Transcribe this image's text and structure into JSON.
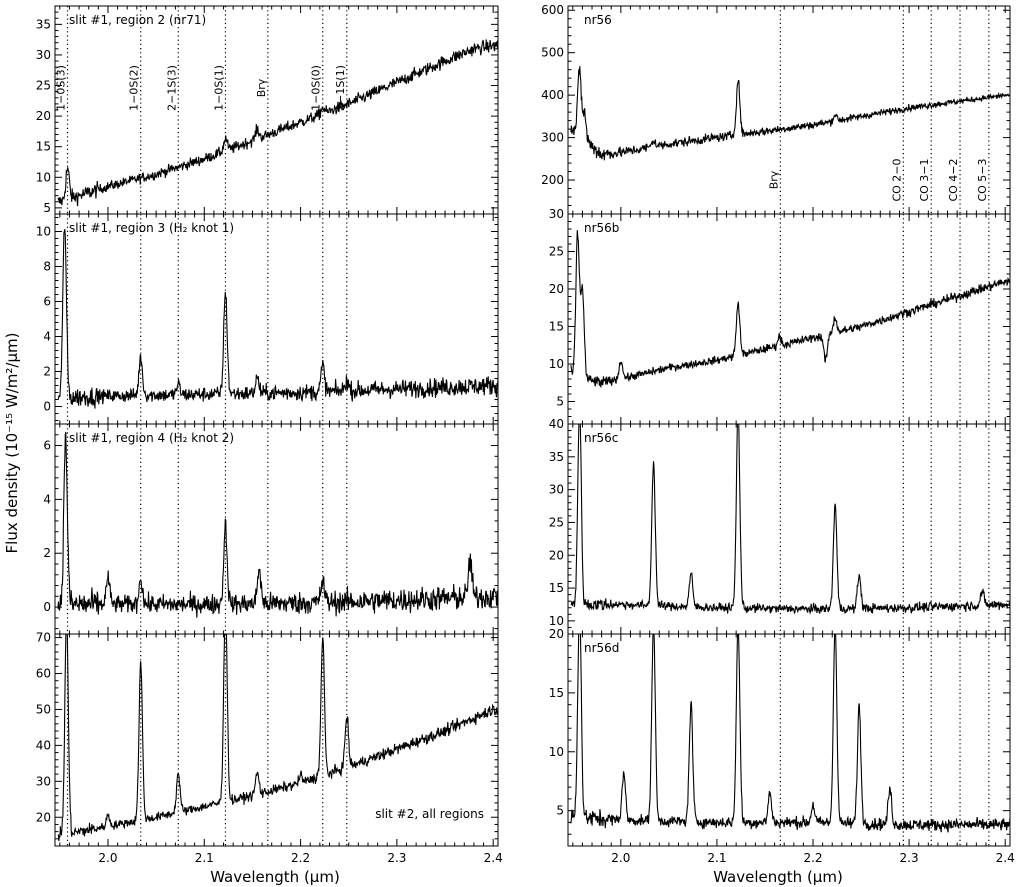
{
  "chart_data": {
    "type": "line",
    "xlabel": "Wavelength (μm)",
    "ylabel": "Flux density (10⁻¹⁵ W/m²/μm)",
    "xlim": [
      1.945,
      2.405
    ],
    "xticks": [
      2.0,
      2.1,
      2.2,
      2.3,
      2.4
    ],
    "xtick_labels": [
      "2.0",
      "2.1",
      "2.2",
      "2.3",
      "2.4"
    ],
    "left_lines": [
      {
        "label": "1−0S(3)",
        "x": 1.958
      },
      {
        "label": "1−0S(2)",
        "x": 2.034
      },
      {
        "label": "2−1S(3)",
        "x": 2.073
      },
      {
        "label": "1−0S(1)",
        "x": 2.122
      },
      {
        "label": "Brγ",
        "x": 2.166
      },
      {
        "label": "1−0S(0)",
        "x": 2.223
      },
      {
        "label": "2−1S(1)",
        "x": 2.248
      }
    ],
    "right_lines": [
      {
        "label": "Brγ",
        "x": 2.166
      },
      {
        "label": "CO 2−0",
        "x": 2.294
      },
      {
        "label": "CO 3−1",
        "x": 2.323
      },
      {
        "label": "CO 4−2",
        "x": 2.353
      },
      {
        "label": "CO 5−3",
        "x": 2.383
      }
    ],
    "panels": [
      {
        "col": "left",
        "row": 0,
        "label": "slit #1, region 2 (nr71)",
        "label_pos": "top-left",
        "ylim": [
          4,
          38
        ],
        "yticks": [
          5,
          10,
          15,
          20,
          25,
          30,
          35
        ],
        "ytick_labels": [
          "5",
          "10",
          "15",
          "20",
          "25",
          "30",
          "35"
        ],
        "show_line_labels": true,
        "continuum": {
          "x": [
            1.95,
            2.0,
            2.05,
            2.1,
            2.15,
            2.2,
            2.25,
            2.3,
            2.35,
            2.38,
            2.4
          ],
          "y": [
            6,
            8.5,
            10.5,
            13,
            16,
            19,
            22,
            25.5,
            29,
            31,
            31.5
          ]
        },
        "noise": 0.55,
        "noise_slope": 0.4,
        "peaks": [
          {
            "x": 1.958,
            "h": 5
          },
          {
            "x": 2.122,
            "h": 2
          },
          {
            "x": 2.155,
            "h": 1.5
          },
          {
            "x": 2.223,
            "h": 1
          }
        ]
      },
      {
        "col": "left",
        "row": 1,
        "label": "slit #1, region 3 (H₂ knot 1)",
        "label_pos": "top-left",
        "ylim": [
          -1,
          11
        ],
        "yticks": [
          0,
          2,
          4,
          6,
          8,
          10
        ],
        "ytick_labels": [
          "0",
          "2",
          "4",
          "6",
          "8",
          "10"
        ],
        "show_line_labels": false,
        "continuum": {
          "x": [
            1.95,
            2.0,
            2.1,
            2.2,
            2.3,
            2.4
          ],
          "y": [
            0.5,
            0.6,
            0.7,
            0.8,
            1.0,
            1.2
          ]
        },
        "noise": 0.25,
        "noise_slope": 0.6,
        "peaks": [
          {
            "x": 1.955,
            "h": 10
          },
          {
            "x": 2.034,
            "h": 2.2
          },
          {
            "x": 2.073,
            "h": 0.6
          },
          {
            "x": 2.122,
            "h": 5.8
          },
          {
            "x": 2.155,
            "h": 0.9
          },
          {
            "x": 2.223,
            "h": 1.5
          },
          {
            "x": 2.248,
            "h": 0.6
          }
        ]
      },
      {
        "col": "left",
        "row": 2,
        "label": "slit #1, region 4 (H₂ knot 2)",
        "label_pos": "top-left",
        "ylim": [
          -1,
          6.8
        ],
        "yticks": [
          0,
          2,
          4,
          6
        ],
        "ytick_labels": [
          "0",
          "2",
          "4",
          "6"
        ],
        "show_line_labels": false,
        "continuum": {
          "x": [
            1.95,
            2.1,
            2.2,
            2.3,
            2.4
          ],
          "y": [
            0.1,
            0.1,
            0.15,
            0.25,
            0.4
          ]
        },
        "noise": 0.22,
        "noise_slope": 0.6,
        "peaks": [
          {
            "x": 1.956,
            "h": 6.2
          },
          {
            "x": 2.0,
            "h": 1.0
          },
          {
            "x": 2.034,
            "h": 1.0
          },
          {
            "x": 2.122,
            "h": 2.9
          },
          {
            "x": 2.157,
            "h": 1.3
          },
          {
            "x": 2.223,
            "h": 0.8
          },
          {
            "x": 2.376,
            "h": 1.4
          }
        ]
      },
      {
        "col": "left",
        "row": 3,
        "label": "slit #2, all regions",
        "label_pos": "bottom-right",
        "ylim": [
          12,
          71
        ],
        "yticks": [
          20,
          30,
          40,
          50,
          60,
          70
        ],
        "ytick_labels": [
          "20",
          "30",
          "40",
          "50",
          "60",
          "70"
        ],
        "show_line_labels": false,
        "continuum": {
          "x": [
            1.95,
            2.0,
            2.05,
            2.1,
            2.15,
            2.2,
            2.25,
            2.3,
            2.35,
            2.4
          ],
          "y": [
            15,
            17.5,
            20,
            23,
            26,
            29.5,
            34,
            39,
            44,
            50
          ]
        },
        "noise": 0.8,
        "noise_slope": 0.5,
        "peaks": [
          {
            "x": 1.957,
            "h": 60
          },
          {
            "x": 2.0,
            "h": 3
          },
          {
            "x": 2.034,
            "h": 44
          },
          {
            "x": 2.073,
            "h": 11
          },
          {
            "x": 2.122,
            "h": 55
          },
          {
            "x": 2.155,
            "h": 6
          },
          {
            "x": 2.2,
            "h": 2
          },
          {
            "x": 2.223,
            "h": 38
          },
          {
            "x": 2.248,
            "h": 14
          }
        ]
      },
      {
        "col": "right",
        "row": 0,
        "label": "nr56",
        "label_pos": "top-left",
        "ylim": [
          120,
          610
        ],
        "yticks": [
          200,
          300,
          400,
          500,
          600
        ],
        "ytick_labels": [
          "200",
          "300",
          "400",
          "500",
          "600"
        ],
        "show_line_labels": true,
        "continuum": {
          "x": [
            1.945,
            1.96,
            1.98,
            2.0,
            2.05,
            2.1,
            2.15,
            2.2,
            2.25,
            2.3,
            2.35,
            2.4
          ],
          "y": [
            330,
            300,
            260,
            265,
            285,
            300,
            315,
            330,
            350,
            370,
            385,
            400
          ]
        },
        "noise": 9,
        "noise_slope": -0.5,
        "peaks": [
          {
            "x": 1.957,
            "h": 150
          },
          {
            "x": 1.962,
            "h": 60
          },
          {
            "x": 2.122,
            "h": 130
          },
          {
            "x": 2.034,
            "h": 15
          },
          {
            "x": 2.223,
            "h": 15
          }
        ]
      },
      {
        "col": "right",
        "row": 1,
        "label": "nr56b",
        "label_pos": "top-left",
        "ylim": [
          2,
          30
        ],
        "yticks": [
          5,
          10,
          15,
          20,
          25,
          30
        ],
        "ytick_labels": [
          "5",
          "10",
          "15",
          "20",
          "25",
          "30"
        ],
        "show_line_labels": false,
        "continuum": {
          "x": [
            1.945,
            1.96,
            1.98,
            2.0,
            2.05,
            2.1,
            2.15,
            2.2,
            2.25,
            2.3,
            2.35,
            2.4
          ],
          "y": [
            9,
            8,
            7.5,
            8,
            9.5,
            10.5,
            12,
            13.5,
            15,
            17,
            19,
            21
          ]
        },
        "noise": 0.35,
        "noise_slope": 0.3,
        "peaks": [
          {
            "x": 1.955,
            "h": 19
          },
          {
            "x": 1.96,
            "h": 12
          },
          {
            "x": 2.0,
            "h": 2.5
          },
          {
            "x": 2.122,
            "h": 7
          },
          {
            "x": 2.165,
            "h": 1.2
          },
          {
            "x": 2.213,
            "h": -3.5
          },
          {
            "x": 2.223,
            "h": 2
          }
        ]
      },
      {
        "col": "right",
        "row": 2,
        "label": "nr56c",
        "label_pos": "top-left",
        "ylim": [
          8,
          40
        ],
        "yticks": [
          10,
          15,
          20,
          25,
          30,
          35,
          40
        ],
        "ytick_labels": [
          "10",
          "15",
          "20",
          "25",
          "30",
          "35",
          "40"
        ],
        "show_line_labels": false,
        "continuum": {
          "x": [
            1.945,
            2.0,
            2.1,
            2.2,
            2.3,
            2.4
          ],
          "y": [
            12.5,
            12.5,
            12,
            11.8,
            12,
            12.5
          ]
        },
        "noise": 0.45,
        "noise_slope": 0.2,
        "peaks": [
          {
            "x": 1.957,
            "h": 30
          },
          {
            "x": 2.034,
            "h": 22
          },
          {
            "x": 2.073,
            "h": 5
          },
          {
            "x": 2.122,
            "h": 30
          },
          {
            "x": 2.223,
            "h": 16
          },
          {
            "x": 2.248,
            "h": 5
          },
          {
            "x": 2.376,
            "h": 2
          }
        ]
      },
      {
        "col": "right",
        "row": 3,
        "label": "nr56d",
        "label_pos": "top-left",
        "ylim": [
          2,
          20
        ],
        "yticks": [
          5,
          10,
          15,
          20
        ],
        "ytick_labels": [
          "5",
          "10",
          "15",
          "20"
        ],
        "show_line_labels": false,
        "continuum": {
          "x": [
            1.945,
            2.0,
            2.1,
            2.2,
            2.3,
            2.4
          ],
          "y": [
            4.5,
            4.2,
            4.0,
            4.0,
            3.8,
            3.8
          ]
        },
        "noise": 0.32,
        "noise_slope": 0.2,
        "peaks": [
          {
            "x": 1.957,
            "h": 18
          },
          {
            "x": 2.003,
            "h": 4
          },
          {
            "x": 2.034,
            "h": 17
          },
          {
            "x": 2.073,
            "h": 10
          },
          {
            "x": 2.122,
            "h": 17
          },
          {
            "x": 2.155,
            "h": 2.5
          },
          {
            "x": 2.2,
            "h": 1.5
          },
          {
            "x": 2.223,
            "h": 17
          },
          {
            "x": 2.248,
            "h": 10
          },
          {
            "x": 2.28,
            "h": 3
          }
        ]
      }
    ]
  }
}
